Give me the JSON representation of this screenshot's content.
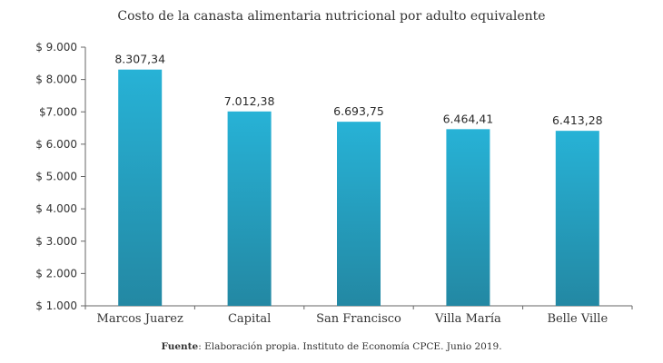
{
  "chart_data": {
    "type": "bar",
    "title": "Costo de la canasta alimentaria  nutricional por  adulto equivalente",
    "xlabel": "",
    "ylabel": "",
    "categories": [
      "Marcos Juarez",
      "Capital",
      "San Francisco",
      "Villa María",
      "Belle Ville"
    ],
    "values": [
      8307.34,
      7012.38,
      6693.75,
      6464.41,
      6413.28
    ],
    "data_labels": [
      "8.307,34",
      "7.012,38",
      "6.693,75",
      "6.464,41",
      "6.413,28"
    ],
    "ylim": [
      1000,
      9000
    ],
    "yticks": [
      1000,
      2000,
      3000,
      4000,
      5000,
      6000,
      7000,
      8000,
      9000
    ],
    "ytick_labels": [
      "$ 1.000",
      "$ 2.000",
      "$ 3.000",
      "$ 4.000",
      "$ 5.000",
      "$ 6.000",
      "$7.000",
      "$ 8.000",
      "$ 9.000"
    ],
    "grid": false,
    "legend": "none",
    "bar_color_top": "#27b2d6",
    "bar_color_bottom": "#2388a3",
    "axis_color": "#666666"
  },
  "footer": {
    "source_label": "Fuente",
    "source_text": ": Elaboración propia. Instituto de Economía CPCE. Junio 2019."
  }
}
